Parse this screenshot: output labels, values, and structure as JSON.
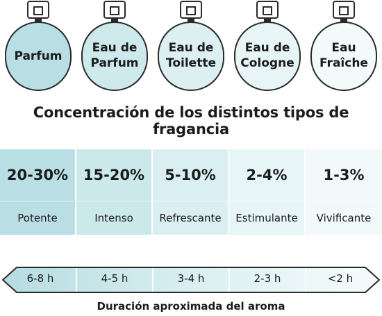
{
  "bottles": [
    {
      "name": "Parfum",
      "color": "#b9dfe4"
    },
    {
      "name": "Eau de\nParfum",
      "color": "#cde9ec"
    },
    {
      "name": "Eau de\nToilette",
      "color": "#dcf0f2"
    },
    {
      "name": "Eau de\nCologne",
      "color": "#e8f5f6"
    },
    {
      "name": "Eau\nFraîche",
      "color": "#f2fafa"
    }
  ],
  "title": "Concentración de los distintos tipos de fragancia",
  "concentrations": [
    {
      "percent": "20-30%",
      "effect": "Potente",
      "color": "#b9dfe4"
    },
    {
      "percent": "15-20%",
      "effect": "Intenso",
      "color": "#cbe8eb"
    },
    {
      "percent": "5-10%",
      "effect": "Refrescante",
      "color": "#daeff1"
    },
    {
      "percent": "2-4%",
      "effect": "Estimulante",
      "color": "#e7f5f6"
    },
    {
      "percent": "1-3%",
      "effect": "Vivificante",
      "color": "#f1f9fa"
    }
  ],
  "duration": {
    "labels": [
      "6-8 h",
      "4-5 h",
      "3-4 h",
      "2-3 h",
      "<2 h"
    ],
    "title": "Duración aproximada del aroma"
  }
}
